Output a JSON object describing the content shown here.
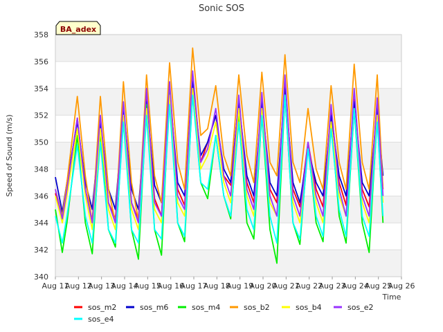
{
  "chart_data": {
    "type": "line",
    "title": "Sonic SOS",
    "xlabel": "Time",
    "ylabel": "Speed of Sound (m/s)",
    "badge": "BA_adex",
    "ylim": [
      340,
      358
    ],
    "yticks": [
      340,
      342,
      344,
      346,
      348,
      350,
      352,
      354,
      356,
      358
    ],
    "xlim": [
      11,
      26
    ],
    "xticks": [
      {
        "v": 11,
        "label": "Aug 11"
      },
      {
        "v": 12,
        "label": "Aug 12"
      },
      {
        "v": 13,
        "label": "Aug 13"
      },
      {
        "v": 14,
        "label": "Aug 14"
      },
      {
        "v": 15,
        "label": "Aug 15"
      },
      {
        "v": 16,
        "label": "Aug 16"
      },
      {
        "v": 17,
        "label": "Aug 17"
      },
      {
        "v": 18,
        "label": "Aug 18"
      },
      {
        "v": 19,
        "label": "Aug 19"
      },
      {
        "v": 20,
        "label": "Aug 20"
      },
      {
        "v": 21,
        "label": "Aug 21"
      },
      {
        "v": 22,
        "label": "Aug 22"
      },
      {
        "v": 23,
        "label": "Aug 23"
      },
      {
        "v": 24,
        "label": "Aug 24"
      },
      {
        "v": 25,
        "label": "Aug 25"
      },
      {
        "v": 26,
        "label": "Aug 26"
      }
    ],
    "grid": true,
    "legend_position": "bottom",
    "series": [
      {
        "name": "sos_m2",
        "color": "#ff0000",
        "x": [
          11.0,
          11.3,
          11.5,
          11.95,
          12.3,
          12.6,
          12.95,
          13.3,
          13.6,
          13.95,
          14.3,
          14.6,
          14.95,
          15.3,
          15.6,
          15.95,
          16.3,
          16.6,
          16.95,
          17.3,
          17.6,
          17.95,
          18.3,
          18.6,
          18.95,
          19.3,
          19.6,
          19.95,
          20.3,
          20.6,
          20.95,
          21.3,
          21.6,
          21.95,
          22.3,
          22.6,
          22.95,
          23.3,
          23.6,
          23.95,
          24.3,
          24.6,
          24.95,
          25.2
        ],
        "y": [
          346.2,
          344.5,
          346.5,
          351.8,
          346.5,
          344.2,
          351.8,
          345.5,
          344.3,
          352.8,
          345.5,
          344.2,
          353.5,
          345.8,
          344.5,
          354.2,
          346.5,
          345.3,
          355.0,
          348.5,
          350.0,
          352.0,
          347.5,
          346.8,
          353.2,
          347.0,
          345.5,
          353.2,
          346.5,
          345.5,
          354.5,
          346.5,
          345.2,
          350.0,
          346.5,
          345.2,
          352.5,
          347.0,
          345.3,
          353.2,
          346.5,
          345.2,
          353.0,
          346.5
        ]
      },
      {
        "name": "sos_m6",
        "color": "#0000cc",
        "x": [
          11.0,
          11.3,
          11.5,
          11.95,
          12.3,
          12.6,
          12.95,
          13.3,
          13.6,
          13.95,
          14.3,
          14.6,
          14.95,
          15.3,
          15.6,
          15.95,
          16.3,
          16.6,
          16.95,
          17.3,
          17.6,
          17.95,
          18.3,
          18.6,
          18.95,
          19.3,
          19.6,
          19.95,
          20.3,
          20.6,
          20.95,
          21.3,
          21.6,
          21.95,
          22.3,
          22.6,
          22.95,
          23.3,
          23.6,
          23.95,
          24.3,
          24.6,
          24.95,
          25.2
        ],
        "y": [
          347.4,
          344.8,
          347.0,
          351.5,
          347.0,
          345.0,
          351.5,
          346.5,
          345.0,
          352.5,
          346.5,
          345.0,
          353.0,
          346.8,
          345.5,
          353.8,
          347.0,
          346.0,
          354.5,
          349.0,
          350.0,
          352.0,
          348.0,
          347.0,
          353.0,
          347.5,
          346.0,
          353.0,
          347.0,
          346.0,
          354.0,
          347.0,
          345.5,
          349.5,
          347.0,
          346.0,
          352.0,
          347.5,
          346.0,
          353.0,
          347.0,
          346.0,
          352.5,
          347.5
        ]
      },
      {
        "name": "sos_m4",
        "color": "#00ee00",
        "x": [
          11.0,
          11.3,
          11.5,
          11.95,
          12.3,
          12.6,
          12.95,
          13.3,
          13.6,
          13.95,
          14.3,
          14.6,
          14.95,
          15.3,
          15.6,
          15.95,
          16.3,
          16.6,
          16.95,
          17.3,
          17.6,
          17.95,
          18.3,
          18.6,
          18.95,
          19.3,
          19.6,
          19.95,
          20.3,
          20.6,
          20.95,
          21.3,
          21.6,
          21.95,
          22.3,
          22.6,
          22.95,
          23.3,
          23.6,
          23.95,
          24.3,
          24.6,
          24.95,
          25.2
        ],
        "y": [
          345.0,
          341.8,
          344.0,
          350.5,
          344.0,
          341.7,
          350.8,
          343.5,
          342.2,
          352.0,
          343.5,
          341.3,
          352.8,
          343.5,
          341.6,
          353.8,
          344.0,
          342.6,
          353.8,
          347.0,
          345.8,
          350.5,
          346.0,
          344.3,
          352.0,
          344.0,
          342.8,
          352.0,
          343.5,
          341.0,
          353.5,
          344.0,
          342.4,
          349.8,
          344.0,
          342.6,
          351.5,
          344.5,
          342.5,
          352.5,
          344.0,
          341.8,
          352.0,
          344.0
        ]
      },
      {
        "name": "sos_b2",
        "color": "#ff9900",
        "x": [
          11.0,
          11.3,
          11.5,
          11.95,
          12.3,
          12.6,
          12.95,
          13.3,
          13.6,
          13.95,
          14.3,
          14.6,
          14.95,
          15.3,
          15.6,
          15.95,
          16.3,
          16.6,
          16.95,
          17.3,
          17.6,
          17.95,
          18.3,
          18.6,
          18.95,
          19.3,
          19.6,
          19.95,
          20.3,
          20.6,
          20.95,
          21.3,
          21.6,
          21.95,
          22.3,
          22.6,
          22.95,
          23.3,
          23.6,
          23.95,
          24.3,
          24.6,
          24.95,
          25.2
        ],
        "y": [
          346.5,
          344.5,
          347.0,
          353.4,
          347.5,
          344.0,
          353.4,
          346.5,
          344.0,
          354.5,
          347.0,
          344.2,
          355.0,
          347.5,
          345.5,
          355.9,
          348.5,
          346.5,
          357.0,
          350.5,
          351.0,
          354.2,
          349.0,
          347.5,
          355.0,
          349.0,
          347.0,
          355.2,
          348.5,
          347.5,
          356.5,
          348.5,
          347.0,
          352.5,
          348.0,
          346.5,
          354.2,
          348.5,
          346.5,
          355.8,
          348.5,
          346.5,
          355.0,
          346.5
        ]
      },
      {
        "name": "sos_b4",
        "color": "#ffff00",
        "x": [
          11.0,
          11.3,
          11.5,
          11.95,
          12.3,
          12.6,
          12.95,
          13.3,
          13.6,
          13.95,
          14.3,
          14.6,
          14.95,
          15.3,
          15.6,
          15.95,
          16.3,
          16.6,
          16.95,
          17.3,
          17.6,
          17.95,
          18.3,
          18.6,
          18.95,
          19.3,
          19.6,
          19.95,
          20.3,
          20.6,
          20.95,
          21.3,
          21.6,
          21.95,
          22.3,
          22.6,
          22.95,
          23.3,
          23.6,
          23.95,
          24.3,
          24.6,
          24.95,
          25.2
        ],
        "y": [
          346.0,
          344.0,
          346.0,
          351.0,
          346.0,
          343.5,
          351.0,
          345.0,
          343.5,
          352.0,
          345.0,
          343.5,
          352.5,
          345.0,
          344.0,
          353.5,
          345.5,
          344.5,
          354.0,
          348.0,
          349.0,
          351.5,
          347.0,
          345.5,
          352.5,
          346.0,
          344.5,
          352.5,
          345.5,
          344.5,
          353.5,
          345.5,
          344.0,
          349.5,
          345.5,
          344.0,
          351.5,
          346.0,
          344.5,
          352.5,
          345.5,
          344.0,
          352.0,
          345.5
        ]
      },
      {
        "name": "sos_e2",
        "color": "#9933ff",
        "x": [
          11.0,
          11.3,
          11.5,
          11.95,
          12.3,
          12.6,
          12.95,
          13.3,
          13.6,
          13.95,
          14.3,
          14.6,
          14.95,
          15.3,
          15.6,
          15.95,
          16.3,
          16.6,
          16.95,
          17.3,
          17.6,
          17.95,
          18.3,
          18.6,
          18.95,
          19.3,
          19.6,
          19.95,
          20.3,
          20.6,
          20.95,
          21.3,
          21.6,
          21.95,
          22.3,
          22.6,
          22.95,
          23.3,
          23.6,
          23.95,
          24.3,
          24.6,
          24.95,
          25.2
        ],
        "y": [
          346.5,
          344.3,
          346.5,
          351.8,
          346.5,
          344.0,
          352.0,
          345.5,
          344.0,
          353.0,
          345.5,
          344.0,
          354.0,
          345.5,
          344.5,
          354.5,
          346.0,
          345.0,
          355.3,
          348.5,
          349.5,
          352.5,
          347.5,
          346.0,
          353.5,
          346.5,
          345.0,
          353.7,
          346.0,
          344.5,
          355.0,
          346.0,
          344.5,
          350.0,
          346.0,
          344.5,
          352.8,
          346.5,
          344.5,
          354.0,
          346.0,
          344.5,
          353.3,
          346.0
        ]
      },
      {
        "name": "sos_e4",
        "color": "#00ffff",
        "x": [
          11.0,
          11.3,
          11.5,
          11.95,
          12.3,
          12.6,
          12.95,
          13.3,
          13.6,
          13.95,
          14.3,
          14.6,
          14.95,
          15.3,
          15.6,
          15.95,
          16.3,
          16.6,
          16.95,
          17.3,
          17.6,
          17.95,
          18.3,
          18.6,
          18.95,
          19.3,
          19.6,
          19.95,
          20.3,
          20.6,
          20.95,
          21.3,
          21.6,
          21.95,
          22.3,
          22.6,
          22.95,
          23.3,
          23.6,
          23.95,
          24.3,
          24.6,
          24.95,
          25.2
        ],
        "y": [
          344.5,
          342.5,
          344.5,
          349.8,
          344.5,
          342.5,
          350.0,
          343.5,
          342.5,
          351.5,
          343.5,
          342.5,
          352.0,
          343.5,
          342.8,
          352.8,
          344.0,
          343.0,
          353.5,
          347.0,
          346.5,
          350.5,
          346.0,
          344.5,
          351.5,
          345.0,
          343.5,
          352.0,
          344.5,
          342.5,
          353.5,
          344.0,
          342.8,
          349.5,
          344.5,
          343.0,
          351.0,
          345.0,
          343.0,
          352.5,
          344.5,
          343.0,
          351.5,
          344.5
        ]
      }
    ]
  }
}
